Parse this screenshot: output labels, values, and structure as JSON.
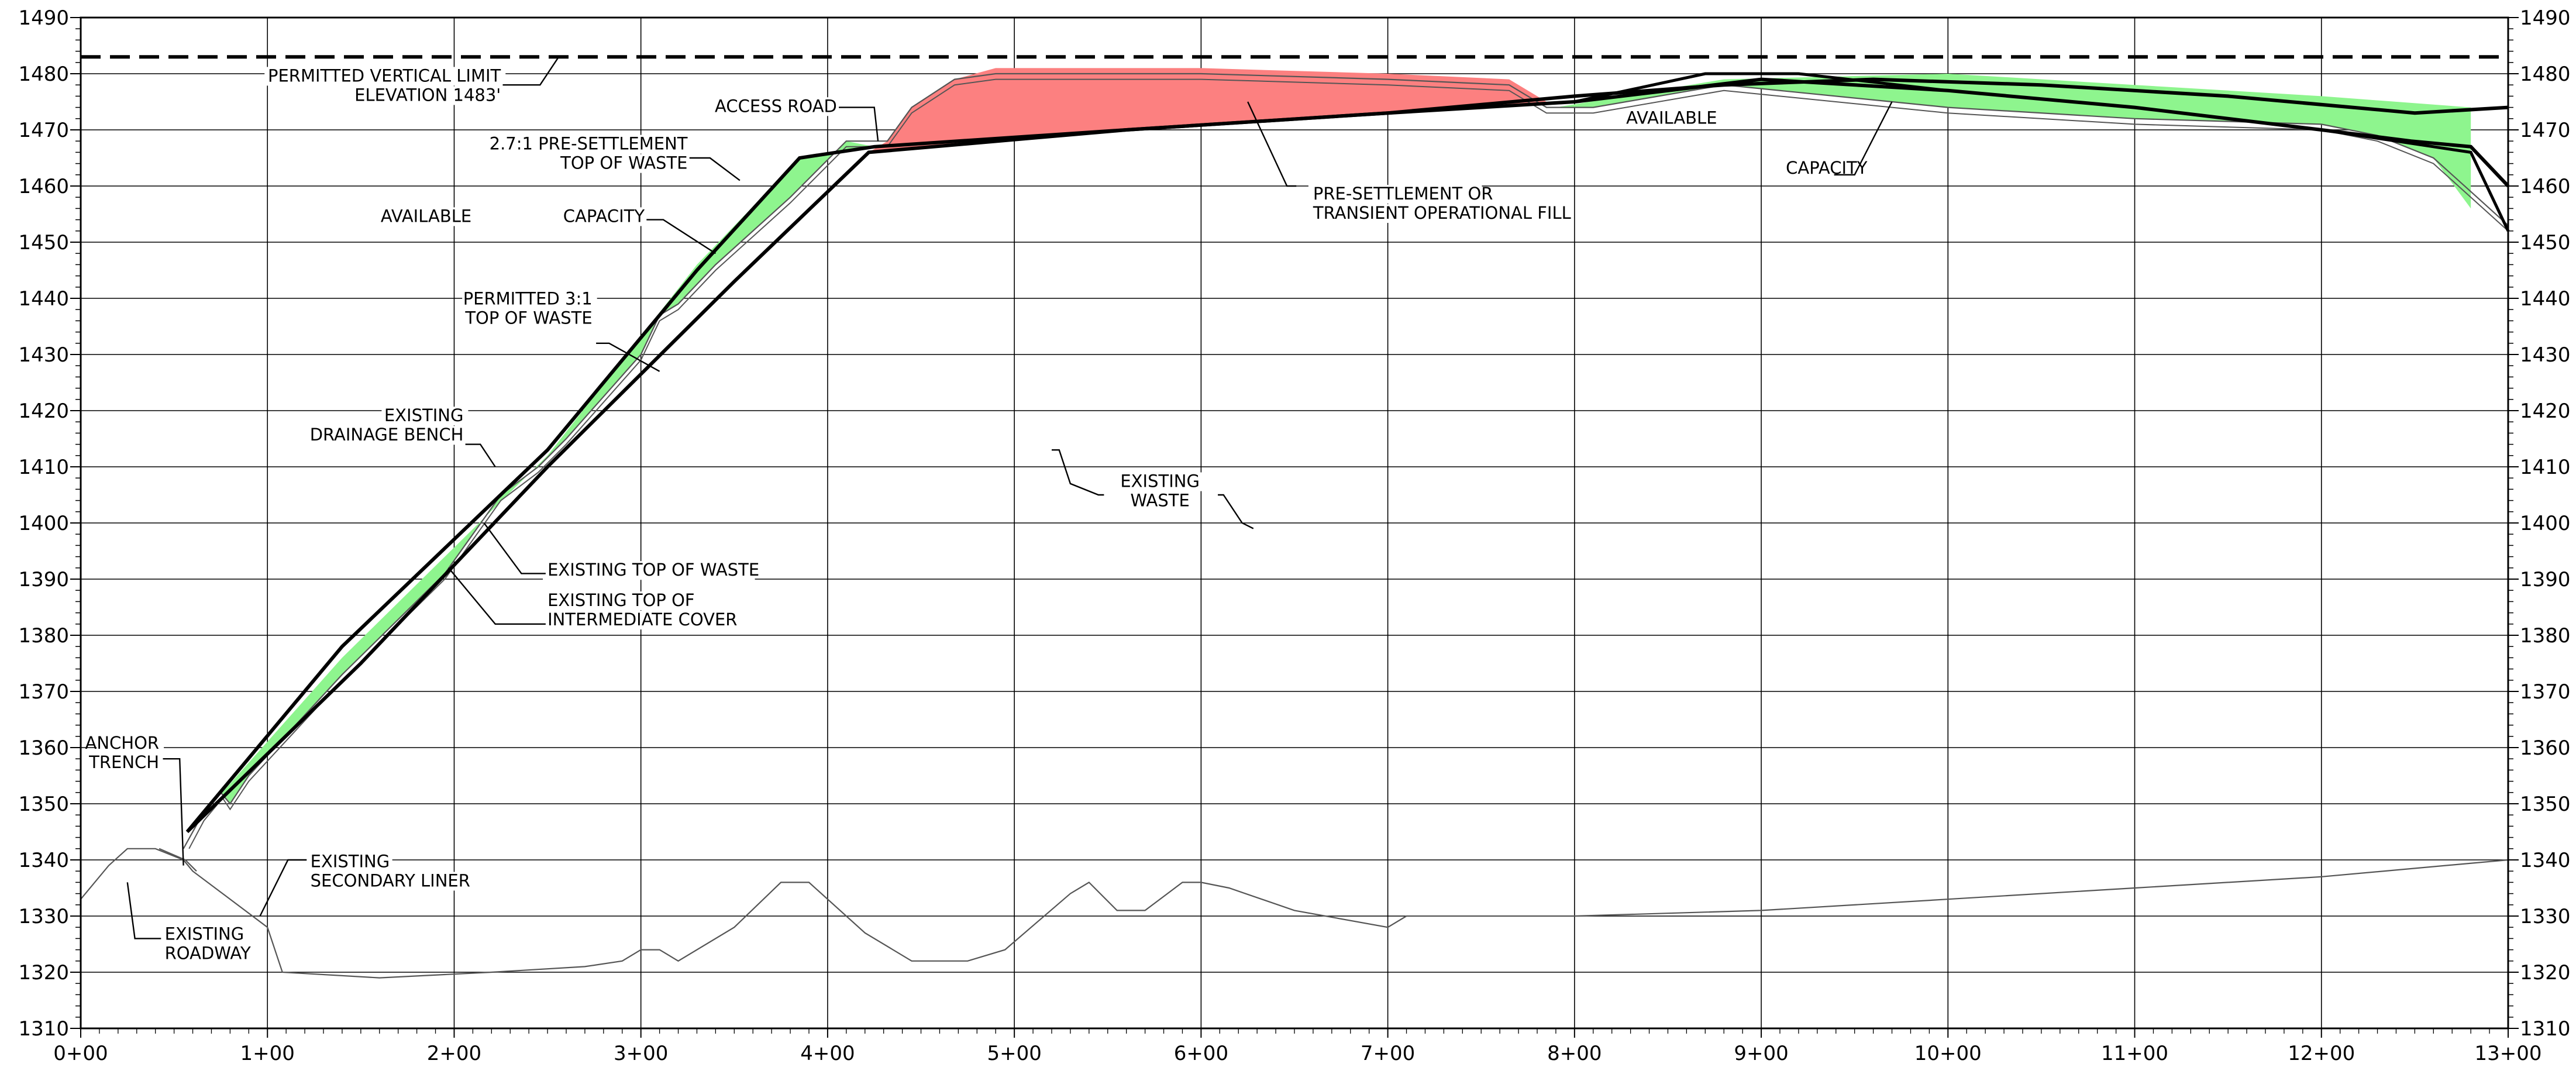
{
  "chart_data": {
    "type": "line",
    "x_range": [
      0,
      1300
    ],
    "y_range": [
      1310,
      1490
    ],
    "x_ticks": [
      {
        "value": 0,
        "label": "0+00"
      },
      {
        "value": 100,
        "label": "1+00"
      },
      {
        "value": 200,
        "label": "2+00"
      },
      {
        "value": 300,
        "label": "3+00"
      },
      {
        "value": 400,
        "label": "4+00"
      },
      {
        "value": 500,
        "label": "5+00"
      },
      {
        "value": 600,
        "label": "6+00"
      },
      {
        "value": 700,
        "label": "7+00"
      },
      {
        "value": 800,
        "label": "8+00"
      },
      {
        "value": 900,
        "label": "9+00"
      },
      {
        "value": 1000,
        "label": "10+00"
      },
      {
        "value": 1100,
        "label": "11+00"
      },
      {
        "value": 1200,
        "label": "12+00"
      },
      {
        "value": 1300,
        "label": "13+00"
      }
    ],
    "y_ticks": [
      {
        "value": 1310,
        "label": "1310"
      },
      {
        "value": 1320,
        "label": "1320"
      },
      {
        "value": 1330,
        "label": "1330"
      },
      {
        "value": 1340,
        "label": "1340"
      },
      {
        "value": 1350,
        "label": "1350"
      },
      {
        "value": 1360,
        "label": "1360"
      },
      {
        "value": 1370,
        "label": "1370"
      },
      {
        "value": 1380,
        "label": "1380"
      },
      {
        "value": 1390,
        "label": "1390"
      },
      {
        "value": 1400,
        "label": "1400"
      },
      {
        "value": 1410,
        "label": "1410"
      },
      {
        "value": 1420,
        "label": "1420"
      },
      {
        "value": 1430,
        "label": "1430"
      },
      {
        "value": 1440,
        "label": "1440"
      },
      {
        "value": 1450,
        "label": "1450"
      },
      {
        "value": 1460,
        "label": "1460"
      },
      {
        "value": 1470,
        "label": "1470"
      },
      {
        "value": 1480,
        "label": "1480"
      },
      {
        "value": 1490,
        "label": "1490"
      }
    ],
    "grid": true,
    "colors": {
      "available_fill": "#8ef58e",
      "fill_red": "#fc8080",
      "line": "#000000",
      "thin_line": "#555555",
      "grid": "#000000"
    },
    "permitted_vertical_limit": 1483,
    "series": {
      "existing_ground": [
        [
          0,
          1333
        ],
        [
          15,
          1339
        ],
        [
          25,
          1342
        ],
        [
          40,
          1342
        ],
        [
          55,
          1340
        ],
        [
          60,
          1338
        ],
        [
          100,
          1328
        ],
        [
          108,
          1320
        ],
        [
          160,
          1319
        ],
        [
          220,
          1320
        ],
        [
          270,
          1321
        ],
        [
          290,
          1322
        ],
        [
          300,
          1324
        ],
        [
          310,
          1324
        ],
        [
          315,
          1323
        ],
        [
          320,
          1322
        ],
        [
          350,
          1328
        ],
        [
          375,
          1336
        ],
        [
          390,
          1336
        ],
        [
          420,
          1327
        ],
        [
          445,
          1322
        ],
        [
          475,
          1322
        ],
        [
          495,
          1324
        ],
        [
          530,
          1334
        ],
        [
          540,
          1336
        ],
        [
          555,
          1331
        ],
        [
          570,
          1331
        ],
        [
          590,
          1336
        ],
        [
          600,
          1336
        ],
        [
          615,
          1335
        ],
        [
          650,
          1331
        ],
        [
          700,
          1328
        ],
        [
          710,
          1330
        ],
        [
          740,
          1330
        ],
        [
          800,
          1330
        ],
        [
          900,
          1331
        ],
        [
          1000,
          1333
        ],
        [
          1100,
          1335
        ],
        [
          1200,
          1337
        ],
        [
          1300,
          1340
        ]
      ],
      "secondary_liner": [
        [
          42,
          1342
        ],
        [
          56,
          1340
        ],
        [
          62,
          1338
        ]
      ],
      "existing_top_of_waste": [
        [
          55,
          1342
        ],
        [
          65,
          1348
        ],
        [
          75,
          1352
        ],
        [
          80,
          1350
        ],
        [
          90,
          1355
        ],
        [
          140,
          1373
        ],
        [
          195,
          1391
        ],
        [
          225,
          1405
        ],
        [
          245,
          1410
        ],
        [
          260,
          1415
        ],
        [
          300,
          1430
        ],
        [
          310,
          1437
        ],
        [
          320,
          1439
        ],
        [
          340,
          1446
        ],
        [
          380,
          1458
        ],
        [
          410,
          1468
        ],
        [
          432,
          1468
        ],
        [
          445,
          1474
        ],
        [
          468,
          1479
        ],
        [
          490,
          1480
        ],
        [
          600,
          1480
        ],
        [
          700,
          1479
        ],
        [
          765,
          1478
        ],
        [
          785,
          1474
        ],
        [
          810,
          1474
        ],
        [
          880,
          1478
        ],
        [
          1000,
          1474
        ],
        [
          1100,
          1472
        ],
        [
          1200,
          1471
        ],
        [
          1230,
          1469
        ],
        [
          1260,
          1465
        ],
        [
          1280,
          1459
        ],
        [
          1300,
          1453
        ]
      ],
      "intermediate_cover": [
        [
          58,
          1342
        ],
        [
          66,
          1347
        ],
        [
          76,
          1351
        ],
        [
          80,
          1349
        ],
        [
          90,
          1354
        ],
        [
          140,
          1372
        ],
        [
          195,
          1390
        ],
        [
          225,
          1404
        ],
        [
          245,
          1409
        ],
        [
          260,
          1414
        ],
        [
          300,
          1429
        ],
        [
          310,
          1436
        ],
        [
          320,
          1438
        ],
        [
          340,
          1445
        ],
        [
          380,
          1457
        ],
        [
          410,
          1467
        ],
        [
          432,
          1467
        ],
        [
          445,
          1473
        ],
        [
          468,
          1478
        ],
        [
          490,
          1479
        ],
        [
          600,
          1479
        ],
        [
          700,
          1478
        ],
        [
          765,
          1477
        ],
        [
          785,
          1473
        ],
        [
          810,
          1473
        ],
        [
          880,
          1477
        ],
        [
          1000,
          1473
        ],
        [
          1100,
          1471
        ],
        [
          1200,
          1470
        ],
        [
          1230,
          1468
        ],
        [
          1260,
          1464
        ],
        [
          1280,
          1458
        ],
        [
          1300,
          1452
        ]
      ],
      "pre_settlement_top": [
        [
          57,
          1345
        ],
        [
          140,
          1378
        ],
        [
          250,
          1413
        ],
        [
          330,
          1445
        ],
        [
          385,
          1465
        ],
        [
          425,
          1467
        ],
        [
          560,
          1470
        ],
        [
          700,
          1473
        ],
        [
          800,
          1475
        ],
        [
          900,
          1479
        ],
        [
          1000,
          1477
        ],
        [
          1100,
          1474
        ],
        [
          1200,
          1470
        ],
        [
          1248,
          1468
        ],
        [
          1280,
          1467
        ],
        [
          1300,
          1460
        ]
      ],
      "permitted_3to1_top": [
        [
          57,
          1345
        ],
        [
          150,
          1375
        ],
        [
          250,
          1410
        ],
        [
          350,
          1443
        ],
        [
          422,
          1466
        ],
        [
          560,
          1470
        ],
        [
          700,
          1473
        ],
        [
          800,
          1476
        ],
        [
          880,
          1478
        ],
        [
          960,
          1479
        ],
        [
          1050,
          1478
        ],
        [
          1150,
          1476
        ],
        [
          1250,
          1473
        ],
        [
          1300,
          1474
        ]
      ],
      "upper_existing_limit": [
        [
          800,
          1475
        ],
        [
          870,
          1480
        ],
        [
          920,
          1480
        ],
        [
          1000,
          1477
        ],
        [
          1100,
          1474
        ],
        [
          1200,
          1470
        ],
        [
          1240,
          1468
        ],
        [
          1260,
          1467
        ],
        [
          1280,
          1466
        ],
        [
          1300,
          1452
        ]
      ],
      "available_capacity_left": [
        [
          57,
          1345
        ],
        [
          140,
          1376
        ],
        [
          250,
          1412
        ],
        [
          330,
          1446
        ],
        [
          385,
          1465
        ],
        [
          425,
          1467
        ],
        [
          410,
          1468
        ],
        [
          380,
          1458
        ],
        [
          340,
          1446
        ],
        [
          320,
          1439
        ],
        [
          310,
          1437
        ],
        [
          300,
          1430
        ],
        [
          260,
          1415
        ],
        [
          245,
          1410
        ],
        [
          225,
          1405
        ],
        [
          195,
          1391
        ],
        [
          140,
          1373
        ],
        [
          90,
          1355
        ],
        [
          80,
          1350
        ],
        [
          75,
          1352
        ],
        [
          65,
          1348
        ],
        [
          57,
          1345
        ]
      ],
      "available_capacity_right": [
        [
          790,
          1474
        ],
        [
          880,
          1479
        ],
        [
          1000,
          1480
        ],
        [
          1100,
          1478
        ],
        [
          1200,
          1476
        ],
        [
          1280,
          1474
        ],
        [
          1280,
          1456
        ],
        [
          1260,
          1465
        ],
        [
          1230,
          1469
        ],
        [
          1200,
          1471
        ],
        [
          1100,
          1472
        ],
        [
          1000,
          1474
        ],
        [
          880,
          1478
        ],
        [
          810,
          1474
        ],
        [
          790,
          1474
        ]
      ],
      "transient_fill": [
        [
          422,
          1466
        ],
        [
          432,
          1468
        ],
        [
          445,
          1474
        ],
        [
          468,
          1479
        ],
        [
          490,
          1481
        ],
        [
          600,
          1481
        ],
        [
          700,
          1480
        ],
        [
          765,
          1479
        ],
        [
          785,
          1475
        ],
        [
          700,
          1473
        ],
        [
          560,
          1470
        ],
        [
          422,
          1466
        ]
      ]
    }
  },
  "annotations": {
    "permitted_vertical_limit": [
      "PERMITTED VERTICAL LIMIT",
      "ELEVATION 1483'"
    ],
    "access_road": [
      "ACCESS ROAD"
    ],
    "pre_settlement_top_of_waste": [
      "2.7:1 PRE-SETTLEMENT",
      "TOP OF WASTE"
    ],
    "available_left": [
      "AVAILABLE"
    ],
    "capacity_left": [
      "CAPACITY"
    ],
    "permitted_3to1": [
      "PERMITTED 3:1",
      "TOP OF WASTE"
    ],
    "existing_drainage_bench": [
      "EXISTING",
      "DRAINAGE BENCH"
    ],
    "existing_top_of_waste": [
      "EXISTING TOP OF WASTE"
    ],
    "existing_top_of_intermediate_cover": [
      "EXISTING TOP OF",
      "INTERMEDIATE COVER"
    ],
    "anchor_trench": [
      "ANCHOR",
      "TRENCH"
    ],
    "existing_secondary_liner": [
      "EXISTING",
      "SECONDARY LINER"
    ],
    "existing_roadway": [
      "EXISTING",
      "ROADWAY"
    ],
    "existing_waste": [
      "EXISTING",
      "WASTE"
    ],
    "pre_settlement_or_transient_fill": [
      "PRE-SETTLEMENT OR",
      "TRANSIENT OPERATIONAL FILL"
    ],
    "available_right": [
      "AVAILABLE"
    ],
    "capacity_right": [
      "CAPACITY"
    ]
  }
}
